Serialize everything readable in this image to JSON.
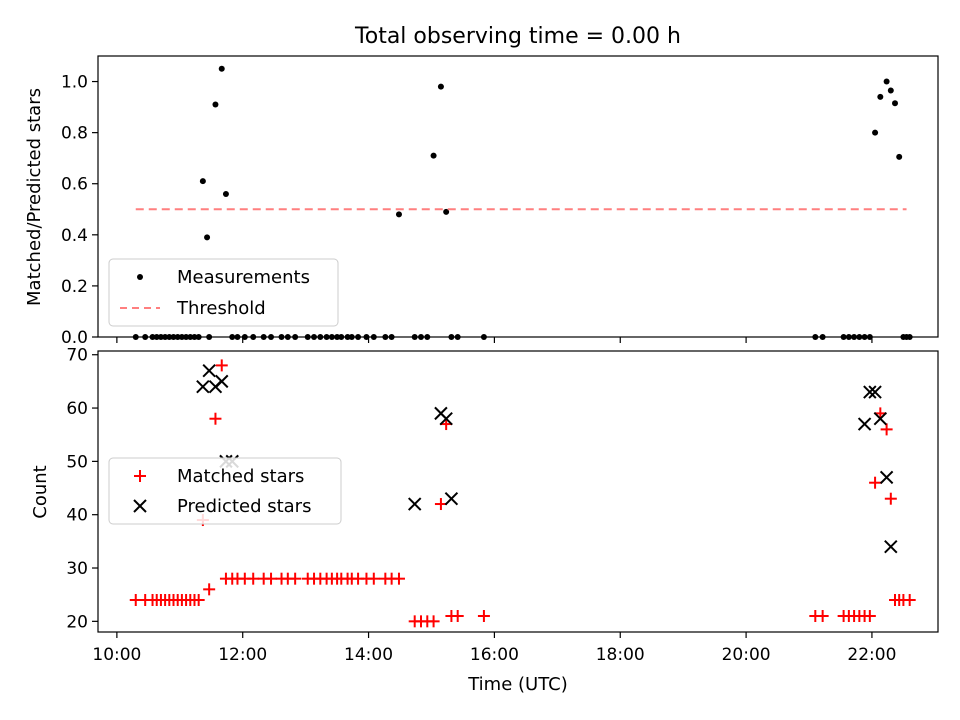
{
  "title": "Total observing time = 0.00 h",
  "chart_data": [
    {
      "type": "scatter",
      "ylabel": "Matched/Predicted stars",
      "ylim": [
        0,
        1.1
      ],
      "xlim_hours": [
        9.7,
        23.05
      ],
      "yticks": [
        "0.0",
        "0.2",
        "0.4",
        "0.6",
        "0.8",
        "1.0"
      ],
      "legend_placement": "lower-left",
      "series": [
        {
          "name": "Measurements",
          "marker": "dot",
          "color": "#000000",
          "x": [
            "10:18",
            "10:27",
            "10:34",
            "10:38",
            "10:42",
            "10:46",
            "10:50",
            "10:54",
            "10:58",
            "11:02",
            "11:06",
            "11:10",
            "11:14",
            "11:18",
            "11:22",
            "11:26",
            "11:28",
            "11:34",
            "11:40",
            "11:44",
            "11:50",
            "11:55",
            "12:02",
            "12:10",
            "12:20",
            "12:27",
            "12:37",
            "12:43",
            "12:50",
            "13:02",
            "13:08",
            "13:14",
            "13:20",
            "13:25",
            "13:30",
            "13:34",
            "13:40",
            "13:44",
            "13:50",
            "13:58",
            "14:05",
            "14:16",
            "14:22",
            "14:29",
            "14:44",
            "14:50",
            "14:56",
            "15:02",
            "15:09",
            "15:14",
            "15:19",
            "15:25",
            "15:50",
            "21:06",
            "21:13",
            "21:33",
            "21:38",
            "21:43",
            "21:48",
            "21:53",
            "21:58",
            "22:33",
            "22:03",
            "22:08",
            "22:14",
            "22:18",
            "22:22",
            "22:26",
            "22:30",
            "22:36"
          ],
          "y": [
            0,
            0,
            0,
            0,
            0,
            0,
            0,
            0,
            0,
            0,
            0,
            0,
            0,
            0,
            0.61,
            0.39,
            0,
            0.91,
            1.05,
            0.56,
            0,
            0,
            0,
            0,
            0,
            0,
            0,
            0,
            0,
            0,
            0,
            0,
            0,
            0,
            0,
            0,
            0,
            0,
            0,
            0,
            0,
            0,
            0,
            0.48,
            0,
            0,
            0,
            0.71,
            0.98,
            0.49,
            0,
            0,
            0,
            0,
            0,
            0,
            0,
            0,
            0,
            0,
            0,
            0,
            0.8,
            0.94,
            1.0,
            0.965,
            0.915,
            0.705,
            0,
            0
          ]
        },
        {
          "name": "Threshold",
          "style": "dashed",
          "color": "#ff7f7f",
          "x": [
            "10:18",
            "22:33"
          ],
          "y": [
            0.5,
            0.5
          ]
        }
      ]
    },
    {
      "type": "scatter",
      "ylabel": "Count",
      "xlabel": "Time (UTC)",
      "ylim": [
        18,
        70.7
      ],
      "xlim_hours": [
        9.7,
        23.05
      ],
      "yticks": [
        "20",
        "30",
        "40",
        "50",
        "60",
        "70"
      ],
      "xticks": [
        "10:00",
        "12:00",
        "14:00",
        "16:00",
        "18:00",
        "20:00",
        "22:00"
      ],
      "legend_placement": "center-left",
      "series": [
        {
          "name": "Matched stars",
          "marker": "plus",
          "color": "#ff0000",
          "x": [
            "10:18",
            "10:27",
            "10:34",
            "10:38",
            "10:42",
            "10:46",
            "10:50",
            "10:54",
            "10:58",
            "11:02",
            "11:06",
            "11:10",
            "11:14",
            "11:18",
            "11:22",
            "11:28",
            "11:34",
            "11:40",
            "11:44",
            "11:50",
            "11:55",
            "12:02",
            "12:10",
            "12:20",
            "12:27",
            "12:37",
            "12:43",
            "12:50",
            "13:02",
            "13:08",
            "13:14",
            "13:20",
            "13:25",
            "13:30",
            "13:34",
            "13:40",
            "13:44",
            "13:50",
            "13:58",
            "14:05",
            "14:16",
            "14:22",
            "14:29",
            "14:44",
            "14:50",
            "14:56",
            "15:02",
            "15:09",
            "15:14",
            "15:19",
            "15:25",
            "15:50",
            "21:06",
            "21:13",
            "21:33",
            "21:38",
            "21:43",
            "21:48",
            "21:53",
            "21:58",
            "22:03",
            "22:08",
            "22:14",
            "22:18",
            "22:22",
            "22:26",
            "22:30",
            "22:36"
          ],
          "y": [
            24,
            24,
            24,
            24,
            24,
            24,
            24,
            24,
            24,
            24,
            24,
            24,
            24,
            24,
            39,
            26,
            58,
            68,
            28,
            28,
            28,
            28,
            28,
            28,
            28,
            28,
            28,
            28,
            28,
            28,
            28,
            28,
            28,
            28,
            28,
            28,
            28,
            28,
            28,
            28,
            28,
            28,
            28,
            20,
            20,
            20,
            20,
            42,
            57,
            21,
            21,
            21,
            21,
            21,
            21,
            21,
            21,
            21,
            21,
            21,
            46,
            59,
            56,
            43,
            24,
            24,
            24,
            24
          ]
        },
        {
          "name": "Predicted stars",
          "marker": "x",
          "color": "#000000",
          "x": [
            "11:22",
            "11:28",
            "11:34",
            "11:40",
            "11:44",
            "11:50",
            "14:44",
            "15:09",
            "15:14",
            "15:19",
            "21:53",
            "21:58",
            "22:03",
            "22:08",
            "22:14",
            "22:18"
          ],
          "y": [
            64,
            67,
            64,
            65,
            50,
            50,
            42,
            59,
            58,
            43,
            57,
            63,
            63,
            58,
            47,
            34
          ]
        }
      ]
    }
  ]
}
